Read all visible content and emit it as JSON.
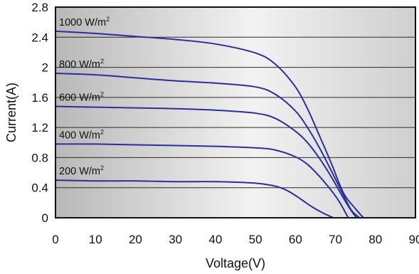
{
  "chart_data": {
    "type": "line",
    "xlabel": "Voltage(V)",
    "ylabel": "Current(A)",
    "xlim": [
      0,
      90
    ],
    "ylim": [
      0,
      2.8
    ],
    "xticks": [
      "0",
      "10",
      "20",
      "30",
      "40",
      "50",
      "60",
      "70",
      "80",
      "90"
    ],
    "yticks": [
      "0",
      "0.4",
      "0.8",
      "1.2",
      "1.6",
      "2",
      "2.4",
      "2.8"
    ],
    "grid": "horizontal",
    "colors": {
      "line": "#2a2f9a",
      "grid": "#2b2b2b",
      "frame": "#111111"
    },
    "series": [
      {
        "name": "1000 W/m²",
        "label_base": "1000 W/m",
        "label_sup": "2",
        "x": [
          0,
          10,
          20,
          30,
          40,
          50,
          55,
          60,
          63,
          66,
          69,
          72,
          75,
          77
        ],
        "y": [
          2.48,
          2.45,
          2.41,
          2.37,
          2.31,
          2.19,
          2.04,
          1.74,
          1.45,
          1.09,
          0.72,
          0.33,
          0.12,
          0
        ]
      },
      {
        "name": "800 W/m²",
        "label_base": "800 W/m",
        "label_sup": "2",
        "x": [
          0,
          10,
          20,
          30,
          40,
          50,
          55,
          60,
          63,
          66,
          69,
          72,
          74,
          76
        ],
        "y": [
          1.92,
          1.9,
          1.86,
          1.82,
          1.79,
          1.74,
          1.64,
          1.42,
          1.2,
          0.93,
          0.62,
          0.3,
          0.1,
          0
        ]
      },
      {
        "name": "600 W/m²",
        "label_base": "600 W/m",
        "label_sup": "2",
        "x": [
          0,
          10,
          20,
          30,
          40,
          50,
          55,
          60,
          63,
          66,
          69,
          72,
          74,
          75.3
        ],
        "y": [
          1.48,
          1.47,
          1.46,
          1.45,
          1.43,
          1.39,
          1.32,
          1.15,
          1.0,
          0.79,
          0.54,
          0.26,
          0.09,
          0
        ]
      },
      {
        "name": "400 W/m²",
        "label_base": "400 W/m",
        "label_sup": "2",
        "x": [
          0,
          10,
          20,
          30,
          40,
          50,
          55,
          60,
          63,
          66,
          69,
          71,
          73.2
        ],
        "y": [
          0.98,
          0.98,
          0.97,
          0.96,
          0.95,
          0.93,
          0.9,
          0.81,
          0.71,
          0.55,
          0.36,
          0.21,
          0
        ]
      },
      {
        "name": "200 W/m²",
        "label_base": "200 W/m",
        "label_sup": "2",
        "x": [
          0,
          10,
          20,
          30,
          40,
          50,
          55,
          58,
          61,
          64,
          67,
          69.5
        ],
        "y": [
          0.5,
          0.49,
          0.49,
          0.48,
          0.48,
          0.46,
          0.42,
          0.36,
          0.26,
          0.15,
          0.06,
          0
        ]
      }
    ]
  }
}
